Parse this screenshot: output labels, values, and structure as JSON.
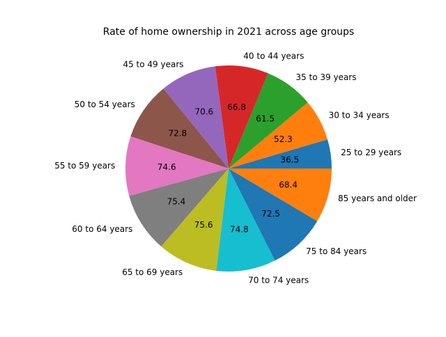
{
  "chart_data": {
    "type": "pie",
    "title": "Rate of home ownership in 2021 across age groups",
    "labels": [
      "25 to 29 years",
      "30 to 34 years",
      "35 to 39 years",
      "40 to 44 years",
      "45 to 49 years",
      "50 to 54 years",
      "55 to 59 years",
      "60 to 64 years",
      "65 to 69 years",
      "70 to 74 years",
      "75 to 84 years",
      "85 years and older"
    ],
    "values": [
      36.5,
      52.3,
      61.5,
      66.8,
      70.6,
      72.8,
      74.6,
      75.4,
      75.6,
      74.8,
      72.5,
      68.4
    ],
    "value_labels": [
      "36.5",
      "52.3",
      "61.5",
      "66.8",
      "70.6",
      "72.8",
      "74.6",
      "75.4",
      "75.6",
      "74.8",
      "72.5",
      "68.4"
    ],
    "colors": [
      "#1f77b4",
      "#ff7f0e",
      "#2ca02c",
      "#d62728",
      "#9467bd",
      "#8c564b",
      "#e377c2",
      "#7f7f7f",
      "#bcbd22",
      "#17becf",
      "#1f77b4",
      "#ff7f0e"
    ],
    "legend": false
  }
}
